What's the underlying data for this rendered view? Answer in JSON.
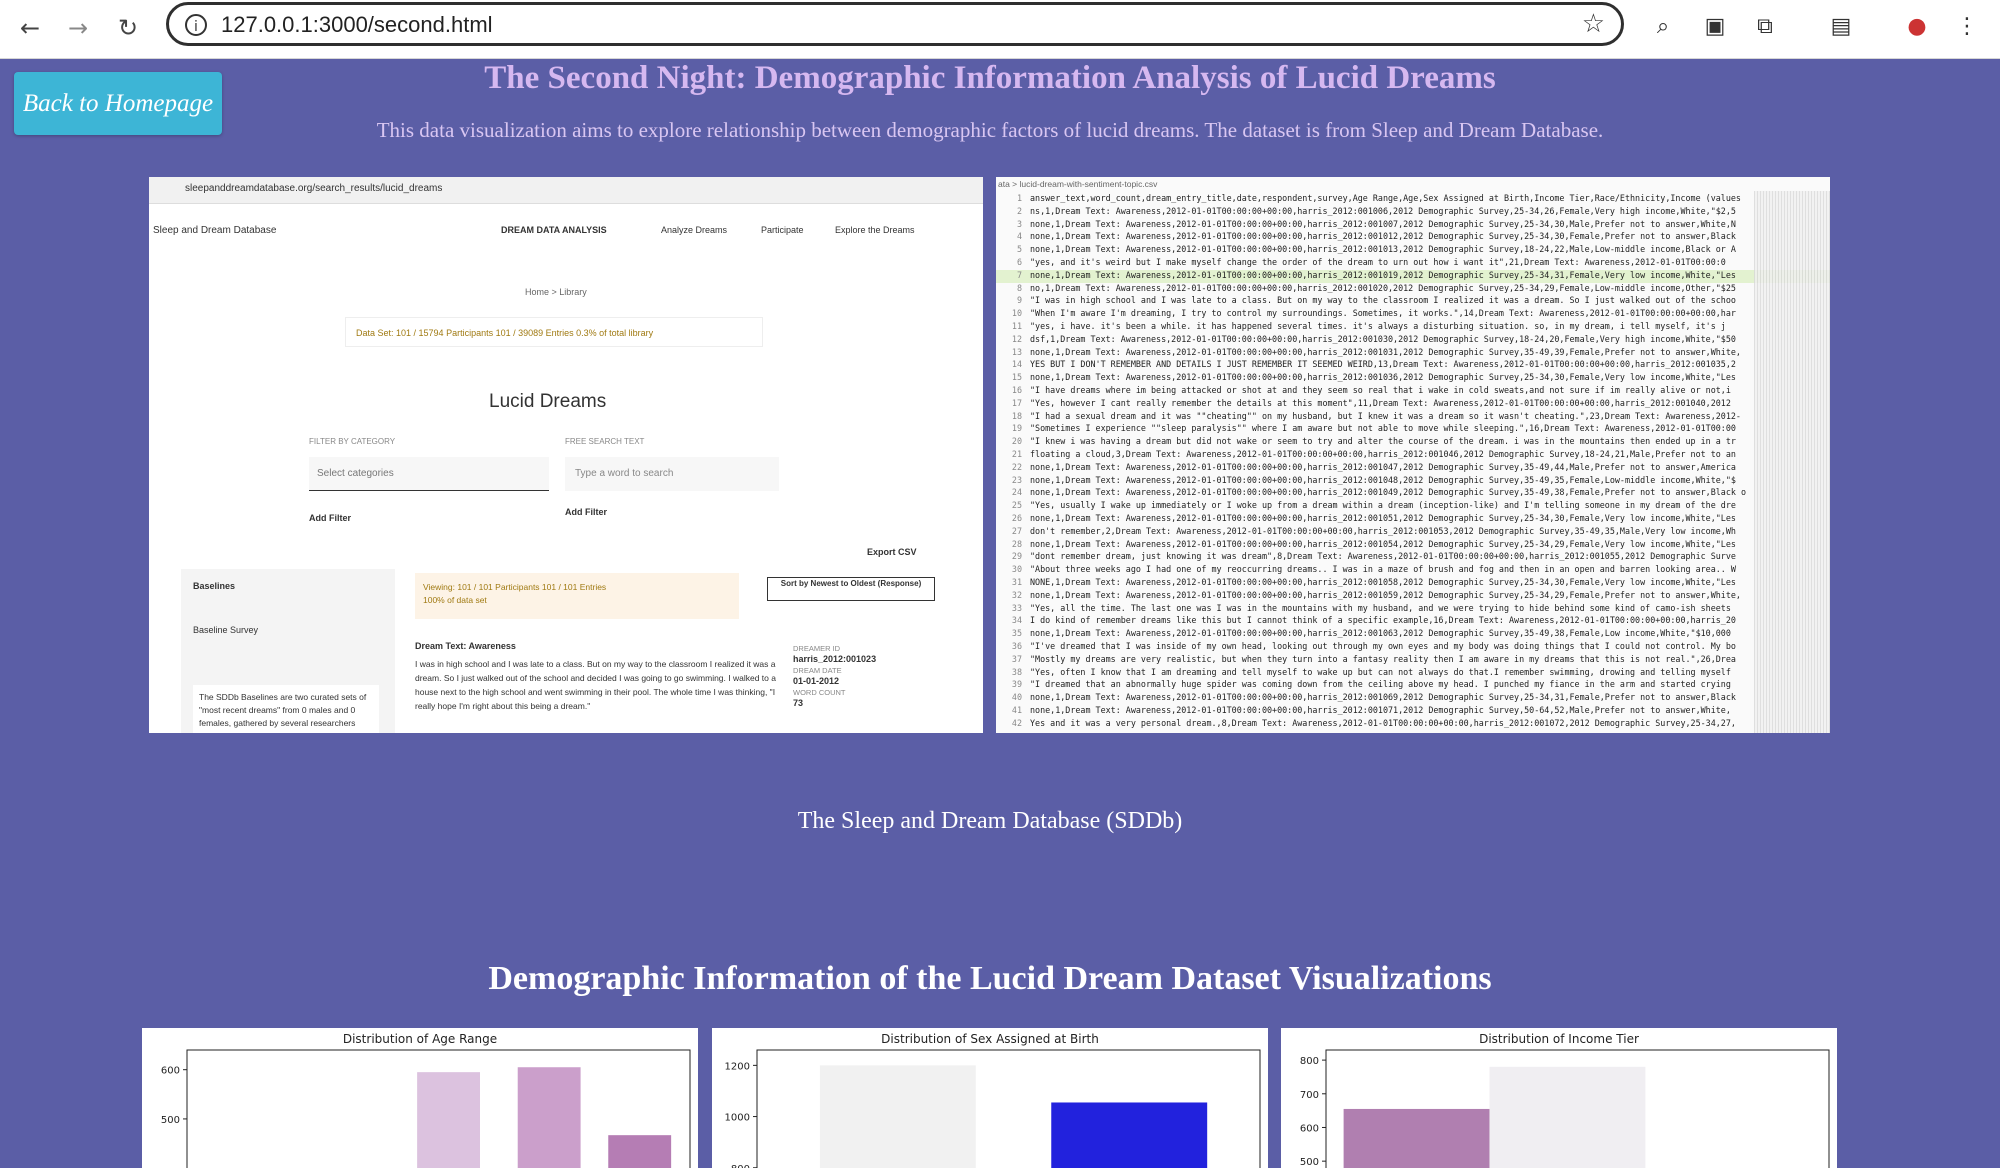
{
  "browser": {
    "url": "127.0.0.1:3000/second.html",
    "back_icon": "arrow-left-icon",
    "forward_icon": "arrow-right-icon",
    "reload_icon": "reload-icon"
  },
  "page": {
    "back_button": "Back to Homepage",
    "title": "The Second Night: Demographic Information Analysis of Lucid Dreams",
    "subtitle": "This data visualization aims to explore relationship between demographic factors of lucid dreams. The dataset is from Sleep and Dream Database.",
    "caption": "The Sleep and Dream Database (SDDb)",
    "viz_heading": "Demographic Information of the Lucid Dream Dataset Visualizations",
    "colors": {
      "background": "#5b5ea6",
      "title": "#d6b8f0",
      "button": "#3db5d6"
    }
  },
  "left_shot": {
    "url": "sleepanddreamdatabase.org/search_results/lucid_dreams",
    "brand": "Sleep and Dream Database",
    "nav": [
      "DREAM DATA ANALYSIS",
      "Analyze Dreams",
      "Participate",
      "Explore the Dreams"
    ],
    "breadcrumb": "Home > Library",
    "dataset": "Data Set:   101 / 15794 Participants   101 / 39089 Entries   0.3% of total library",
    "heading": "Lucid Dreams",
    "filter_label": "FILTER BY CATEGORY",
    "search_label": "FREE SEARCH TEXT",
    "select_placeholder": "Select categories",
    "search_placeholder": "Type a word to search",
    "add_filter": "Add Filter",
    "export": "Export CSV",
    "baselines": "Baselines",
    "baseline_survey": "Baseline Survey",
    "baseline_text": "The SDDb Baselines are two curated sets of \"most recent dreams\" from 0 males and 0 females, gathered by several researchers from a variety of",
    "viewing": "Viewing:   101 / 101 Participants   101 / 101 Entries",
    "viewing_pct": "100% of data set",
    "sort": "Sort by Newest to Oldest (Response)",
    "dream_title": "Dream Text: Awareness",
    "dream_text": "I was in high school and I was late to a class. But on my way to the classroom I realized it was a dream. So I just walked out of the school and decided I was going to go swimming. I walked to a house next to the high school and went swimming in their pool. The whole time I was thinking, \"I really hope I'm right about this being a dream.\"",
    "dreamer_id_label": "DREAMER ID",
    "dreamer_id": "harris_2012:001023",
    "dream_date_label": "DREAM DATE",
    "dream_date": "01-01-2012",
    "word_count_label": "WORD COUNT",
    "word_count": "73"
  },
  "right_shot": {
    "file": "ata > lucid-dream-with-sentiment-topic.csv",
    "lines": [
      "answer_text,word_count,dream_entry_title,date,respondent,survey,Age Range,Age,Sex Assigned at Birth,Income Tier,Race/Ethnicity,Income (values",
      "ns,1,Dream Text: Awareness,2012-01-01T00:00:00+00:00,harris_2012:001006,2012 Demographic Survey,25-34,26,Female,Very high income,White,\"$2,5",
      "none,1,Dream Text: Awareness,2012-01-01T00:00:00+00:00,harris_2012:001007,2012 Demographic Survey,25-34,30,Male,Prefer not to answer,White,N",
      "none,1,Dream Text: Awareness,2012-01-01T00:00:00+00:00,harris_2012:001012,2012 Demographic Survey,25-34,30,Female,Prefer not to answer,Black",
      "none,1,Dream Text: Awareness,2012-01-01T00:00:00+00:00,harris_2012:001013,2012 Demographic Survey,18-24,22,Male,Low-middle income,Black or A",
      "\"yes, and it's weird but I make myself change the order of the dream to urn out how i want it\",21,Dream Text: Awareness,2012-01-01T00:00:0",
      "none,1,Dream Text: Awareness,2012-01-01T00:00:00+00:00,harris_2012:001019,2012 Demographic Survey,25-34,31,Female,Very low income,White,\"Les",
      "no,1,Dream Text: Awareness,2012-01-01T00:00:00+00:00,harris_2012:001020,2012 Demographic Survey,25-34,29,Female,Low-middle income,Other,\"$25",
      "\"I was in high school and I was late to a class. But on my way to the classroom I realized it was a dream. So I just walked out of the schoo",
      "\"When I'm aware I'm dreaming, I try to control my surroundings. Sometimes, it works.\",14,Dream Text: Awareness,2012-01-01T00:00:00+00:00,har",
      "\"yes, i have. it's been a while.  it has happened several times. it's always a disturbing situation.  so, in my dream, i tell myself, it's j",
      "dsf,1,Dream Text: Awareness,2012-01-01T00:00:00+00:00,harris_2012:001030,2012 Demographic Survey,18-24,20,Female,Very high income,White,\"$50",
      "none,1,Dream Text: Awareness,2012-01-01T00:00:00+00:00,harris_2012:001031,2012 Demographic Survey,35-49,39,Female,Prefer not to answer,White,",
      "YES BUT I DON'T REMEMBER AND DETAILS I JUST REMEMBER IT SEEMED WEIRD,13,Dream Text: Awareness,2012-01-01T00:00:00+00:00,harris_2012:001035,2",
      "none,1,Dream Text: Awareness,2012-01-01T00:00:00+00:00,harris_2012:001036,2012 Demographic Survey,25-34,30,Female,Very low income,White,\"Les",
      "\"I have dreams where im being attacked or shot at and they seem so real that i wake in cold sweats,and not sure if im really alive or not,i",
      "\"Yes, however I cant really remember the details at this moment\",11,Dream Text: Awareness,2012-01-01T00:00:00+00:00,harris_2012:001040,2012",
      "\"I had a sexual dream and it was \"\"cheating\"\" on my husband, but I knew it was a dream so it wasn't cheating.\",23,Dream Text: Awareness,2012-",
      "\"Sometimes I experience \"\"sleep paralysis\"\" where I am aware but not able to move while sleeping.\",16,Dream Text: Awareness,2012-01-01T00:00",
      "\"I knew i was having a dream but did not wake or seem to try and alter the course of the dream. i was in the mountains then ended up in a tr",
      "floating a cloud,3,Dream Text: Awareness,2012-01-01T00:00:00+00:00,harris_2012:001046,2012 Demographic Survey,18-24,21,Male,Prefer not to an",
      "none,1,Dream Text: Awareness,2012-01-01T00:00:00+00:00,harris_2012:001047,2012 Demographic Survey,35-49,44,Male,Prefer not to answer,America",
      "none,1,Dream Text: Awareness,2012-01-01T00:00:00+00:00,harris_2012:001048,2012 Demographic Survey,35-49,35,Female,Low-middle income,White,\"$",
      "none,1,Dream Text: Awareness,2012-01-01T00:00:00+00:00,harris_2012:001049,2012 Demographic Survey,35-49,38,Female,Prefer not to answer,Black o",
      "\"Yes, usually I wake up immediately or I woke up from a dream within a dream (inception-like) and I'm telling someone in my dream of the dre",
      "none,1,Dream Text: Awareness,2012-01-01T00:00:00+00:00,harris_2012:001051,2012 Demographic Survey,25-34,30,Female,Very low income,White,\"Les",
      "don't remember,2,Dream Text: Awareness,2012-01-01T00:00:00+00:00,harris_2012:001053,2012 Demographic Survey,35-49,35,Male,Very low income,Wh",
      "none,1,Dream Text: Awareness,2012-01-01T00:00:00+00:00,harris_2012:001054,2012 Demographic Survey,25-34,29,Female,Very low income,White,\"Les",
      "\"dont remember dream, just knowing it was dream\",8,Dream Text: Awareness,2012-01-01T00:00:00+00:00,harris_2012:001055,2012 Demographic Surve",
      "\"About three weeks ago I had one of my reoccurring dreams.. I was in a maze of brush and fog and then in an open and barren looking area.. W",
      "NONE,1,Dream Text: Awareness,2012-01-01T00:00:00+00:00,harris_2012:001058,2012 Demographic Survey,25-34,30,Female,Very low income,White,\"Les",
      "none,1,Dream Text: Awareness,2012-01-01T00:00:00+00:00,harris_2012:001059,2012 Demographic Survey,25-34,29,Female,Prefer not to answer,White,",
      "\"Yes, all the time.  The last one was I was in the mountains with my husband, and we were trying to hide behind some kind of camo-ish sheets",
      "I do kind of remember dreams like this but I cannot think of a specific example,16,Dream Text: Awareness,2012-01-01T00:00:00+00:00,harris_20",
      "none,1,Dream Text: Awareness,2012-01-01T00:00:00+00:00,harris_2012:001063,2012 Demographic Survey,35-49,38,Female,Low income,White,\"$10,000",
      "\"I've dreamed that I was inside of my own head, looking out through my own eyes and my body was doing things that I could not control. My bo",
      "\"Mostly my dreams are very realistic, but when they turn into a fantasy reality then I am aware in my dreams that this is not real.\",26,Drea",
      "\"Yes, often I know that I am dreaming and tell myself to wake up but can not always do that.I remember swimming, drowing and telling myself",
      "\"I dreamed that an abnormally huge spider was coming down from the ceiling above my head. I punched my fiance in the arm and started crying",
      "none,1,Dream Text: Awareness,2012-01-01T00:00:00+00:00,harris_2012:001069,2012 Demographic Survey,25-34,31,Female,Prefer not to answer,Black",
      "none,1,Dream Text: Awareness,2012-01-01T00:00:00+00:00,harris_2012:001071,2012 Demographic Survey,50-64,52,Male,Prefer not to answer,White,",
      "Yes and it was a very personal dream.,8,Dream Text: Awareness,2012-01-01T00:00:00+00:00,harris_2012:001072,2012 Demographic Survey,25-34,27,"
    ]
  },
  "chart_data": [
    {
      "type": "bar",
      "title": "Distribution of Age Range",
      "xlabel": "",
      "ylabel": "",
      "yticks": [
        500,
        600
      ],
      "ylim": [
        380,
        640
      ],
      "bars": [
        {
          "x": 0.52,
          "value": 595,
          "color": "#dcc2df"
        },
        {
          "x": 0.72,
          "value": 605,
          "color": "#cb9fcb"
        },
        {
          "x": 0.9,
          "value": 467,
          "color": "#b57db4"
        }
      ]
    },
    {
      "type": "bar",
      "title": "Distribution of Sex Assigned at Birth",
      "xlabel": "",
      "ylabel": "",
      "yticks": [
        800,
        1000,
        1200
      ],
      "ylim": [
        760,
        1260
      ],
      "bars": [
        {
          "x": 0.28,
          "value": 1200,
          "color": "#f1f1f1"
        },
        {
          "x": 0.74,
          "value": 1055,
          "color": "#2222dd"
        }
      ]
    },
    {
      "type": "bar",
      "title": "Distribution of Income Tier",
      "xlabel": "",
      "ylabel": "",
      "yticks": [
        500,
        600,
        700,
        800
      ],
      "ylim": [
        450,
        830
      ],
      "bars": [
        {
          "x": 0.19,
          "value": 655,
          "color": "#b07fb0"
        },
        {
          "x": 0.48,
          "value": 780,
          "color": "#f0eef2"
        }
      ]
    }
  ]
}
